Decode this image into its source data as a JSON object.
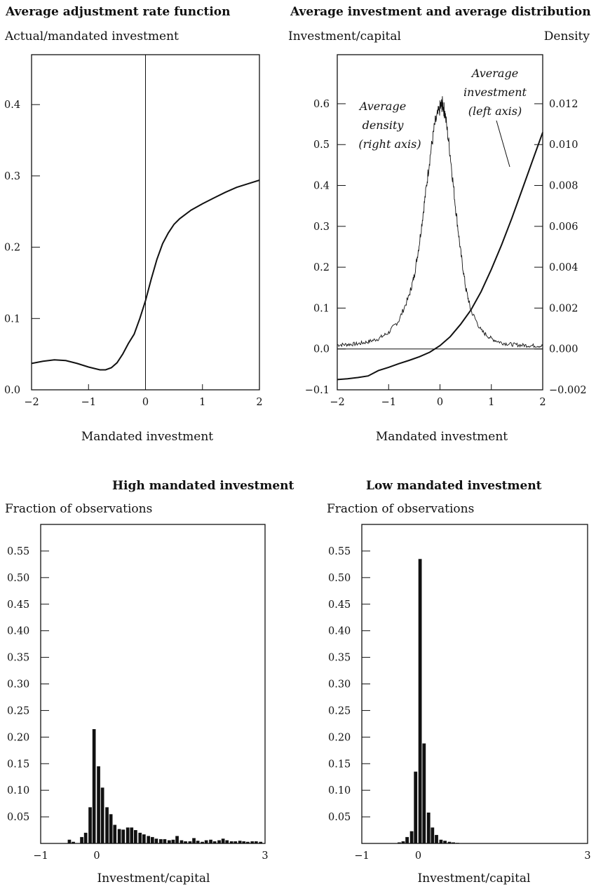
{
  "chart_data": [
    {
      "type": "line",
      "title": "Average adjustment rate function",
      "ylabel": "Actual/mandated investment",
      "xlabel": "Mandated investment",
      "xlim": [
        -2,
        2
      ],
      "ylim": [
        0,
        0.47
      ],
      "xticks": [
        -2,
        -1,
        0,
        1,
        2
      ],
      "xtick_labels": [
        "−2",
        "−1",
        "0",
        "1",
        "2"
      ],
      "yticks": [
        0.0,
        0.1,
        0.2,
        0.3,
        0.4
      ],
      "ytick_labels": [
        "0.0",
        "0.1",
        "0.2",
        "0.3",
        "0.4"
      ],
      "reference_line": "vertical at x = 0",
      "series": [
        {
          "x": [
            -2.0,
            -1.8,
            -1.6,
            -1.4,
            -1.2,
            -1.0,
            -0.8,
            -0.7,
            -0.6,
            -0.5,
            -0.4,
            -0.3,
            -0.2,
            -0.1,
            0.0,
            0.1,
            0.2,
            0.3,
            0.4,
            0.5,
            0.6,
            0.8,
            1.0,
            1.2,
            1.4,
            1.6,
            1.8,
            2.0
          ],
          "y": [
            0.037,
            0.04,
            0.042,
            0.041,
            0.037,
            0.032,
            0.028,
            0.028,
            0.031,
            0.038,
            0.05,
            0.065,
            0.078,
            0.1,
            0.125,
            0.155,
            0.183,
            0.205,
            0.22,
            0.232,
            0.24,
            0.252,
            0.261,
            0.269,
            0.277,
            0.284,
            0.289,
            0.294
          ]
        }
      ]
    },
    {
      "type": "line",
      "title": "Average investment and average distribution",
      "ylabel": "Investment/capital",
      "ylabel_right": "Density",
      "xlabel": "Mandated investment",
      "xlim": [
        -2,
        2
      ],
      "ylim": [
        -0.1,
        0.72
      ],
      "ylim_right": [
        -0.002,
        0.0144
      ],
      "xticks": [
        -2,
        -1,
        0,
        1,
        2
      ],
      "xtick_labels": [
        "−2",
        "−1",
        "0",
        "1",
        "2"
      ],
      "yticks": [
        -0.1,
        0.0,
        0.1,
        0.2,
        0.3,
        0.4,
        0.5,
        0.6
      ],
      "ytick_labels": [
        "−0.1",
        "0.0",
        "0.1",
        "0.2",
        "0.3",
        "0.4",
        "0.5",
        "0.6"
      ],
      "yticks_right": [
        -0.002,
        0.0,
        0.002,
        0.004,
        0.006,
        0.008,
        0.01,
        0.012
      ],
      "ytick_labels_right": [
        "−0.002",
        "0.000",
        "0.002",
        "0.004",
        "0.006",
        "0.008",
        "0.010",
        "0.012"
      ],
      "reference_line": "horizontal at y = 0",
      "annotations": [
        {
          "lines": [
            "Average",
            "investment",
            "(left axis)"
          ]
        },
        {
          "lines": [
            "Average",
            "density",
            "(right axis)"
          ]
        }
      ],
      "series": [
        {
          "name": "Average investment",
          "axis": "left",
          "x": [
            -2.0,
            -1.8,
            -1.6,
            -1.4,
            -1.2,
            -1.0,
            -0.8,
            -0.6,
            -0.4,
            -0.2,
            0.0,
            0.2,
            0.4,
            0.6,
            0.8,
            1.0,
            1.2,
            1.4,
            1.6,
            1.8,
            2.0
          ],
          "y": [
            -0.075,
            -0.073,
            -0.07,
            -0.066,
            -0.053,
            -0.045,
            -0.036,
            -0.028,
            -0.019,
            -0.008,
            0.008,
            0.03,
            0.06,
            0.095,
            0.14,
            0.195,
            0.255,
            0.32,
            0.39,
            0.46,
            0.53
          ]
        },
        {
          "name": "Average density",
          "axis": "right",
          "x": [
            -2.0,
            -1.8,
            -1.6,
            -1.4,
            -1.2,
            -1.0,
            -0.8,
            -0.6,
            -0.5,
            -0.4,
            -0.3,
            -0.2,
            -0.1,
            0.0,
            0.05,
            0.1,
            0.2,
            0.3,
            0.4,
            0.5,
            0.6,
            0.8,
            1.0,
            1.2,
            1.4,
            1.6,
            1.8,
            2.0
          ],
          "y": [
            0.0002,
            0.00022,
            0.00025,
            0.00035,
            0.0005,
            0.0008,
            0.0014,
            0.0026,
            0.0036,
            0.0052,
            0.0072,
            0.0093,
            0.011,
            0.0118,
            0.012,
            0.0115,
            0.0095,
            0.007,
            0.0048,
            0.003,
            0.0019,
            0.0009,
            0.0005,
            0.0003,
            0.00022,
            0.00018,
            0.00016,
            0.00015
          ]
        }
      ]
    },
    {
      "type": "bar",
      "title": "High mandated investment",
      "ylabel": "Fraction of observations",
      "xlabel": "Investment/capital",
      "xlim": [
        -1,
        3
      ],
      "ylim": [
        0,
        0.6
      ],
      "xticks": [
        -1,
        0,
        3
      ],
      "xtick_labels": [
        "−1",
        "0",
        "3"
      ],
      "yticks": [
        0.05,
        0.1,
        0.15,
        0.2,
        0.25,
        0.3,
        0.35,
        0.4,
        0.45,
        0.5,
        0.55
      ],
      "ytick_labels": [
        "0.05",
        "0.10",
        "0.15",
        "0.20",
        "0.25",
        "0.30",
        "0.35",
        "0.40",
        "0.45",
        "0.50",
        "0.55"
      ],
      "bin_width": 0.0741,
      "bin_centers": [
        -0.48,
        -0.41,
        -0.33,
        -0.26,
        -0.19,
        -0.11,
        -0.04,
        0.04,
        0.11,
        0.19,
        0.26,
        0.33,
        0.41,
        0.48,
        0.56,
        0.63,
        0.7,
        0.78,
        0.85,
        0.93,
        1.0,
        1.07,
        1.15,
        1.22,
        1.3,
        1.37,
        1.44,
        1.52,
        1.59,
        1.67,
        1.74,
        1.81,
        1.89,
        1.96,
        2.04,
        2.11,
        2.19,
        2.26,
        2.33,
        2.41,
        2.48,
        2.56,
        2.63,
        2.7,
        2.78,
        2.85,
        2.93
      ],
      "values": [
        0.007,
        0.003,
        0.0,
        0.012,
        0.02,
        0.068,
        0.215,
        0.145,
        0.105,
        0.068,
        0.055,
        0.035,
        0.027,
        0.026,
        0.03,
        0.03,
        0.025,
        0.02,
        0.017,
        0.014,
        0.012,
        0.009,
        0.008,
        0.008,
        0.006,
        0.007,
        0.014,
        0.006,
        0.004,
        0.004,
        0.01,
        0.005,
        0.003,
        0.006,
        0.007,
        0.004,
        0.006,
        0.009,
        0.006,
        0.004,
        0.004,
        0.005,
        0.004,
        0.003,
        0.004,
        0.004,
        0.003
      ]
    },
    {
      "type": "bar",
      "title": "Low mandated investment",
      "ylabel": "Fraction of observations",
      "xlabel": "Investment/capital",
      "xlim": [
        -1,
        3
      ],
      "ylim": [
        0,
        0.6
      ],
      "xticks": [
        -1,
        0,
        3
      ],
      "xtick_labels": [
        "−1",
        "0",
        "3"
      ],
      "yticks": [
        0.05,
        0.1,
        0.15,
        0.2,
        0.25,
        0.3,
        0.35,
        0.4,
        0.45,
        0.5,
        0.55
      ],
      "ytick_labels": [
        "0.05",
        "0.10",
        "0.15",
        "0.20",
        "0.25",
        "0.30",
        "0.35",
        "0.40",
        "0.45",
        "0.50",
        "0.55"
      ],
      "bin_width": 0.0741,
      "bin_centers": [
        -0.33,
        -0.26,
        -0.19,
        -0.11,
        -0.04,
        0.04,
        0.11,
        0.19,
        0.26,
        0.33,
        0.41,
        0.48,
        0.56,
        0.63,
        0.7,
        0.78
      ],
      "values": [
        0.002,
        0.004,
        0.012,
        0.023,
        0.135,
        0.535,
        0.188,
        0.058,
        0.03,
        0.016,
        0.007,
        0.005,
        0.003,
        0.002,
        0.001,
        0.0005
      ]
    }
  ]
}
